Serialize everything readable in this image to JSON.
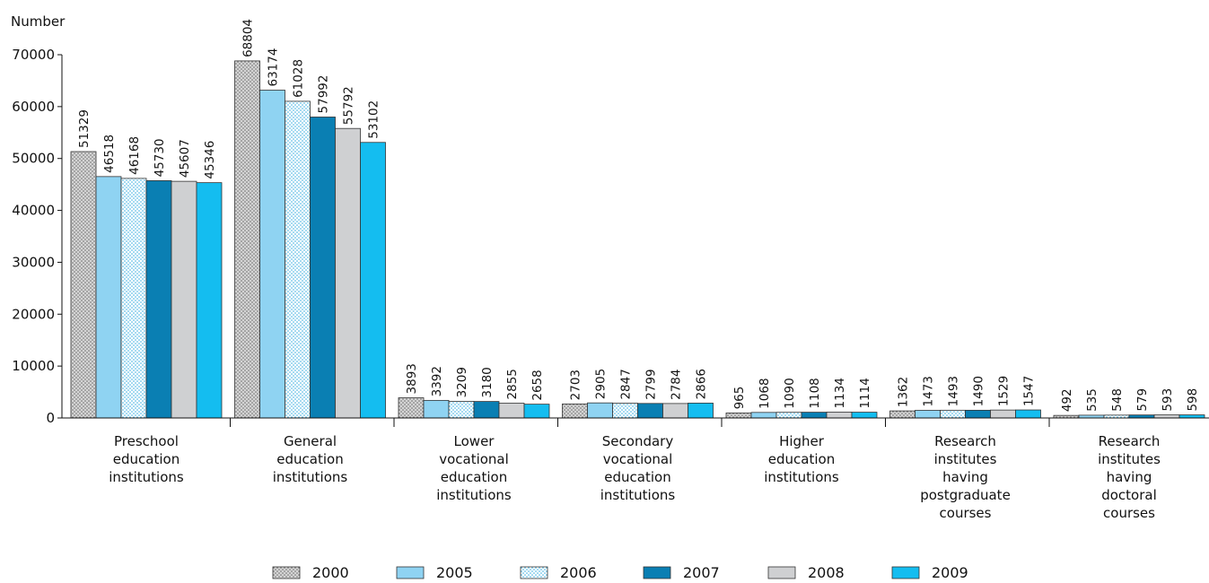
{
  "chart_data": {
    "type": "bar",
    "ylabel": "Number",
    "ylim": [
      0,
      70000
    ],
    "yticks": [
      0,
      10000,
      20000,
      30000,
      40000,
      50000,
      60000,
      70000
    ],
    "grid": false,
    "legend_position": "bottom",
    "categories": [
      [
        "Preschool",
        "education",
        "institutions"
      ],
      [
        "General",
        "education",
        "institutions"
      ],
      [
        "Lower",
        "vocational",
        "education",
        "institutions"
      ],
      [
        "Secondary",
        "vocational",
        "education",
        "institutions"
      ],
      [
        "Higher",
        "education",
        "institutions"
      ],
      [
        "Research",
        "institutes",
        "having",
        "postgraduate",
        "courses"
      ],
      [
        "Research",
        "institutes",
        "having",
        "doctoral",
        "courses"
      ]
    ],
    "series": [
      {
        "name": "2000",
        "color": "#c9c9c9",
        "pattern": "dots-dark",
        "values": [
          51329,
          68804,
          3893,
          2703,
          965,
          1362,
          492
        ]
      },
      {
        "name": "2005",
        "color": "#8fd3f2",
        "pattern": "solid",
        "values": [
          46518,
          63174,
          3392,
          2905,
          1068,
          1473,
          535
        ]
      },
      {
        "name": "2006",
        "color": "#ffffff",
        "pattern": "dots-blue",
        "values": [
          46168,
          61028,
          3209,
          2847,
          1090,
          1493,
          548
        ]
      },
      {
        "name": "2007",
        "color": "#0a7fb3",
        "pattern": "solid",
        "values": [
          45730,
          57992,
          3180,
          2799,
          1108,
          1490,
          579
        ]
      },
      {
        "name": "2008",
        "color": "#cfd0d2",
        "pattern": "solid",
        "values": [
          45607,
          55792,
          2855,
          2784,
          1134,
          1529,
          593
        ]
      },
      {
        "name": "2009",
        "color": "#14bdf0",
        "pattern": "solid",
        "values": [
          45346,
          53102,
          2658,
          2866,
          1114,
          1547,
          598
        ]
      }
    ]
  }
}
